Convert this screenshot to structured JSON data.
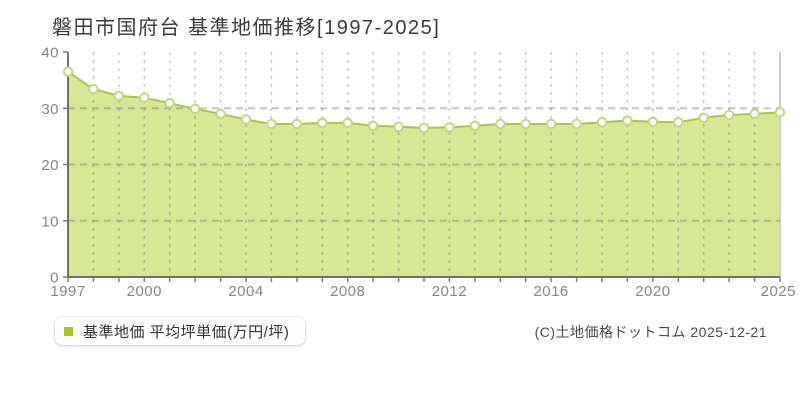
{
  "title": "磐田市国府台 基準地価推移[1997-2025]",
  "legend": {
    "marker_color": "#a6c71f",
    "label": "基準地価 平均坪単価(万円/坪)"
  },
  "footer": {
    "credit": "(C)土地価格ドットコム 2025-12-21"
  },
  "chart_data": {
    "type": "area",
    "title": "磐田市国府台 基準地価推移[1997-2025]",
    "x": [
      1997,
      1998,
      1999,
      2000,
      2001,
      2002,
      2003,
      2004,
      2005,
      2006,
      2007,
      2008,
      2009,
      2010,
      2011,
      2012,
      2013,
      2014,
      2015,
      2016,
      2017,
      2018,
      2019,
      2020,
      2021,
      2022,
      2023,
      2024,
      2025
    ],
    "series": [
      {
        "name": "基準地価 平均坪単価(万円/坪)",
        "values": [
          36.5,
          33.4,
          32.2,
          31.9,
          30.9,
          29.9,
          29.0,
          28.0,
          27.2,
          27.2,
          27.4,
          27.4,
          26.9,
          26.7,
          26.5,
          26.6,
          26.9,
          27.2,
          27.2,
          27.2,
          27.2,
          27.5,
          27.8,
          27.6,
          27.5,
          28.3,
          28.8,
          29.0,
          29.3
        ]
      }
    ],
    "ylabel": "",
    "xlabel": "",
    "ylim": [
      0,
      40
    ],
    "yticks": [
      0,
      10,
      20,
      30,
      40
    ],
    "xtick_labels": [
      1997,
      2000,
      2004,
      2008,
      2012,
      2016,
      2020,
      2025
    ],
    "grid": "dashed",
    "legend_position": "bottom-left",
    "colors": {
      "fill": "#d7e795",
      "line": "#a6c64d",
      "marker_fill": "#ffffff",
      "marker_stroke": "#c3d87e",
      "grid": "rgba(130,130,130,0.45)",
      "axis": "#606060",
      "tick": "#808080",
      "right_border": "#cccccc",
      "tick_label": "#868686"
    }
  }
}
